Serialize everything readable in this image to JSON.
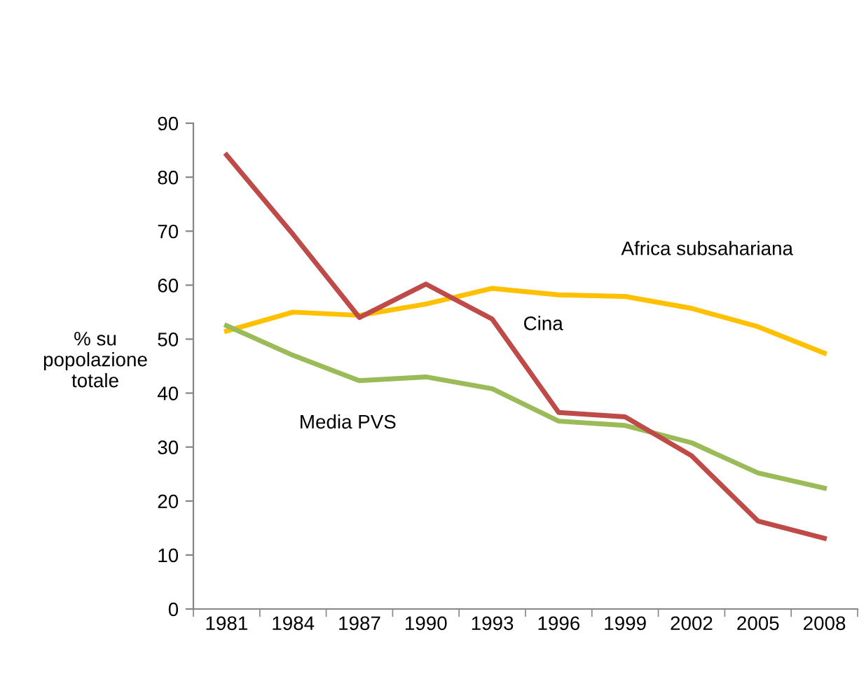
{
  "chart_data": {
    "type": "line",
    "ylabel": "% su\npopolazione\ntotale",
    "categories": [
      "1981",
      "1984",
      "1987",
      "1990",
      "1993",
      "1996",
      "1999",
      "2002",
      "2005",
      "2008"
    ],
    "series": [
      {
        "name": "Africa subsahariana",
        "color": "#ffc000",
        "values": [
          51.5,
          55.0,
          54.4,
          56.5,
          59.4,
          58.2,
          57.9,
          55.7,
          52.3,
          47.4
        ]
      },
      {
        "name": "Media PVS",
        "color": "#9bbb59",
        "values": [
          52.5,
          47.0,
          42.3,
          43.0,
          40.8,
          34.8,
          34.0,
          30.8,
          25.2,
          22.4
        ]
      },
      {
        "name": "Cina",
        "color": "#be4b48",
        "values": [
          84.1,
          69.4,
          54.0,
          60.2,
          53.7,
          36.4,
          35.6,
          28.4,
          16.3,
          13.1
        ]
      }
    ],
    "ylim": [
      0,
      90
    ],
    "yticks": [
      0,
      10,
      20,
      30,
      40,
      50,
      60,
      70,
      80,
      90
    ],
    "grid": false,
    "legend": false,
    "marker": "none",
    "line_style": "solid"
  }
}
